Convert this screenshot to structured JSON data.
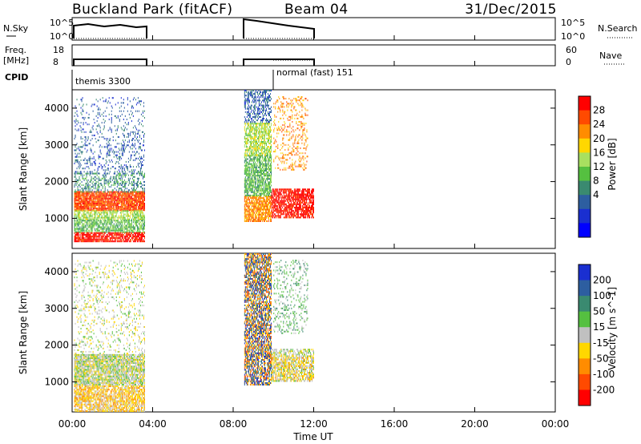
{
  "header": {
    "radar": "Buckland Park (fitACF)",
    "beam": "Beam 04",
    "date": "31/Dec/2015"
  },
  "panels": {
    "nsky_label": "N.Sky",
    "nsky_ticks": [
      "10^5",
      "10^0"
    ],
    "nsky_right_ticks": [
      "10^5",
      "10^0"
    ],
    "nsearch_label": "N.Search",
    "freq_label_1": "Freq.",
    "freq_label_2": "[MHz]",
    "freq_ticks": [
      "18",
      "8"
    ],
    "nave_label": "Nave",
    "nave_ticks": [
      "60",
      "0"
    ],
    "cpid_label": "CPID",
    "cpid_1": "themis 3300",
    "cpid_2": "normal (fast) 151"
  },
  "chart_data": {
    "type": "heatmap",
    "xlabel": "Time UT",
    "ylabel_top": "Slant Range [km]",
    "ylabel_bottom": "Slant Range [km]",
    "xlim_hours": [
      0,
      24
    ],
    "ylim_km": [
      180,
      4500
    ],
    "x_ticks": [
      "00:00",
      "04:00",
      "08:00",
      "12:00",
      "16:00",
      "20:00",
      "00:00"
    ],
    "y_ticks": [
      "1000",
      "2000",
      "3000",
      "4000"
    ],
    "data_gaps_hours": [
      [
        3.65,
        8.5
      ],
      [
        12.0,
        24.0
      ]
    ],
    "power": {
      "label": "Power [dB]",
      "ticks": [
        "28",
        "24",
        "20",
        "16",
        "12",
        "8",
        "4"
      ],
      "colors": [
        "#ff0000",
        "#ff4a00",
        "#ff8c00",
        "#ffd700",
        "#a8e060",
        "#55c040",
        "#3a8a70",
        "#2d5ea0",
        "#1a2fd0",
        "#0000ff"
      ],
      "blobs": [
        {
          "t0": 0.1,
          "t1": 3.6,
          "r0": 1200,
          "r1": 1700,
          "c": 1,
          "d": 0.9
        },
        {
          "t0": 0.1,
          "t1": 3.6,
          "r0": 950,
          "r1": 1200,
          "c": 4,
          "d": 0.7
        },
        {
          "t0": 0.1,
          "t1": 3.6,
          "r0": 600,
          "r1": 950,
          "c": 5,
          "d": 0.7
        },
        {
          "t0": 0.1,
          "t1": 3.6,
          "r0": 350,
          "r1": 600,
          "c": 0,
          "d": 0.8
        },
        {
          "t0": 0.1,
          "t1": 3.6,
          "r0": 1700,
          "r1": 2200,
          "c": 6,
          "d": 0.35
        },
        {
          "t0": 0.1,
          "t1": 3.6,
          "r0": 2200,
          "r1": 3400,
          "c": 7,
          "d": 0.2
        },
        {
          "t0": 0.1,
          "t1": 3.6,
          "r0": 3400,
          "r1": 4300,
          "c": 7,
          "d": 0.12
        },
        {
          "t0": 8.55,
          "t1": 9.9,
          "r0": 900,
          "r1": 1600,
          "c": 2,
          "d": 0.8
        },
        {
          "t0": 8.55,
          "t1": 9.9,
          "r0": 1600,
          "r1": 2700,
          "c": 5,
          "d": 0.75
        },
        {
          "t0": 8.55,
          "t1": 9.9,
          "r0": 2700,
          "r1": 3600,
          "c": 4,
          "d": 0.7
        },
        {
          "t0": 8.55,
          "t1": 9.9,
          "r0": 3600,
          "r1": 4500,
          "c": 7,
          "d": 0.45
        },
        {
          "t0": 9.9,
          "t1": 12.0,
          "r0": 1000,
          "r1": 1800,
          "c": 0,
          "d": 0.75
        },
        {
          "t0": 10.0,
          "t1": 11.7,
          "r0": 2300,
          "r1": 4300,
          "c": 2,
          "d": 0.22
        }
      ]
    },
    "velocity": {
      "label": "Velocity [m s^-1]",
      "ticks": [
        "200",
        "100",
        "50",
        "15",
        "-15",
        "-50",
        "-100",
        "-200"
      ],
      "colors": [
        "#1a2fd0",
        "#2d5ea0",
        "#3a8a70",
        "#55c040",
        "#c0c0c0",
        "#ffd700",
        "#ff8c00",
        "#ff4a00",
        "#ff0000"
      ],
      "blobs": [
        {
          "t0": 0.1,
          "t1": 3.6,
          "r0": 900,
          "r1": 1750,
          "c": 4,
          "d": 0.85
        },
        {
          "t0": 0.1,
          "t1": 3.6,
          "r0": 180,
          "r1": 900,
          "c": 5,
          "d": 0.75
        },
        {
          "t0": 0.1,
          "t1": 3.6,
          "r0": 1750,
          "r1": 4300,
          "c": 4,
          "d": 0.15
        },
        {
          "t0": 8.55,
          "t1": 9.9,
          "r0": 900,
          "r1": 4500,
          "c": 6,
          "d": 0.55
        },
        {
          "t0": 8.55,
          "t1": 9.9,
          "r0": 900,
          "r1": 4500,
          "c": 1,
          "d": 0.35
        },
        {
          "t0": 9.9,
          "t1": 12.0,
          "r0": 1000,
          "r1": 1900,
          "c": 4,
          "d": 0.55
        },
        {
          "t0": 9.9,
          "t1": 12.0,
          "r0": 1000,
          "r1": 1700,
          "c": 5,
          "d": 0.35
        },
        {
          "t0": 10.0,
          "t1": 11.7,
          "r0": 2300,
          "r1": 4300,
          "c": 3,
          "d": 0.2
        }
      ]
    }
  }
}
